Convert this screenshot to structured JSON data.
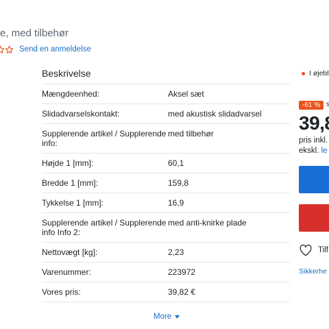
{
  "product": {
    "title_fragment": "e, med tilbehør",
    "rating": {
      "stars_filled": 0,
      "stars_total": 5
    },
    "review_link": "Send en anmeldelse"
  },
  "specs": {
    "heading": "Beskrivelse",
    "rows": [
      {
        "key": "Mængdeenhed:",
        "value": "Aksel sæt"
      },
      {
        "key": "Slidadvarselskontakt:",
        "value": "med akustisk slidadvarsel"
      },
      {
        "key": "Supplerende artikel / Supplerende info:",
        "value": "med tilbehør"
      },
      {
        "key": "Højde 1 [mm]:",
        "value": "60,1"
      },
      {
        "key": "Bredde 1 [mm]:",
        "value": "159,8"
      },
      {
        "key": "Tykkelse 1 [mm]:",
        "value": "16,9"
      },
      {
        "key": "Supplerende artikel / Supplerende info Info 2:",
        "value": "med anti-knirke plade"
      },
      {
        "key": "Nettovægt [kg]:",
        "value": "2,23"
      },
      {
        "key": "Varenummer:",
        "value": "223972"
      },
      {
        "key": "Vores pris:",
        "value": "39,82 €"
      }
    ],
    "more_label": "More"
  },
  "purchase": {
    "stock_text": "I øjebl",
    "discount_badge": "-61 %",
    "discount_suffix": "s",
    "price_fragment": "39,8",
    "price_incl_fragment": "pris inkl.",
    "price_excl_fragment": "ekskl.",
    "price_excl_link_fragment": "le",
    "wishlist_fragment": "Tilf",
    "security_link_fragment": "Sikkerhe"
  },
  "colors": {
    "accent_blue": "#1a6fd6",
    "link_blue": "#1a6fc9",
    "cart_red": "#d72f2b",
    "discount_orange": "#e9531d",
    "star_orange": "#e9531d"
  },
  "icons": {
    "star": "star-outline-icon",
    "more": "chevron-down-icon",
    "wishlist": "heart-outline-icon",
    "stock": "status-dot-icon"
  }
}
